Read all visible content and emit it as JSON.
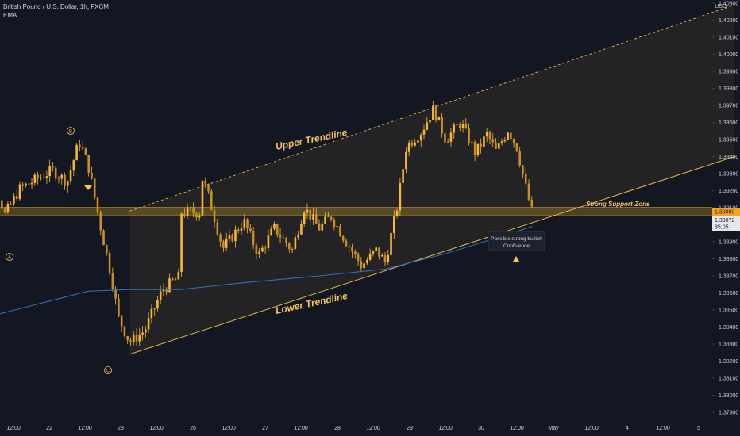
{
  "header": {
    "symbol": "British Pound / U.S. Dollar, 1h, FXCM",
    "indicator": "EMA"
  },
  "colors": {
    "background": "#131722",
    "candle": "#f7b633",
    "ema": "#2f6fb3",
    "trendline": "#e8b44a",
    "support_zone": "#c99a2e",
    "price_tag": "#f2a51a",
    "text": "#d1d4dc"
  },
  "chart_data": {
    "type": "candlestick",
    "currency": "USD",
    "y_ticks": [
      "1.37900",
      "1.38000",
      "1.38100",
      "1.38200",
      "1.38300",
      "1.38400",
      "1.38500",
      "1.38600",
      "1.38700",
      "1.38800",
      "1.38900",
      "1.39000",
      "1.39100",
      "1.39200",
      "1.39300",
      "1.39400",
      "1.39500",
      "1.39600",
      "1.39700",
      "1.39800",
      "1.39900",
      "1.40000",
      "1.40100",
      "1.40200",
      "1.40300"
    ],
    "x_ticks": [
      "12:00",
      "22",
      "12:00",
      "23",
      "12:00",
      "26",
      "12:00",
      "27",
      "12:00",
      "28",
      "12:00",
      "29",
      "12:00",
      "30",
      "12:00",
      "May",
      "12:00",
      "4",
      "12:00",
      "5"
    ],
    "price_labels": {
      "support_level": "1.39080",
      "last_price": "1.39072",
      "countdown": "35:05"
    },
    "annotations": {
      "upper_trendline": "Upper Trendline",
      "lower_trendline": "Lower Trendline",
      "support_zone": "Strong Support-Zone",
      "confluence_line1": "Possible strong bullish",
      "confluence_line2": "Confluence",
      "point_a": "A",
      "point_b": "B",
      "point_c": "C"
    },
    "trendlines": {
      "upper": {
        "from": [
          "23 03:00",
          1.3908
        ],
        "to": [
          "5 12:00",
          1.4029
        ]
      },
      "lower": {
        "from": [
          "23 03:00",
          1.3824
        ],
        "to": [
          "5 12:00",
          1.394
        ]
      }
    },
    "support_zone_price": 1.3908,
    "anchors": [
      [
        "21 07:00",
        1.3943
      ],
      [
        "21 13:00",
        1.3928
      ],
      [
        "21 17:00",
        1.3906
      ],
      [
        "21 22:00",
        1.3921
      ],
      [
        "22 01:00",
        1.3932
      ],
      [
        "22 06:00",
        1.3925
      ],
      [
        "22 10:00",
        1.3949
      ],
      [
        "22 13:00",
        1.3935
      ],
      [
        "22 17:00",
        1.39
      ],
      [
        "22 21:00",
        1.3868
      ],
      [
        "22 23:00",
        1.3846
      ],
      [
        "23 03:00",
        1.3831
      ],
      [
        "23 08:00",
        1.3838
      ],
      [
        "23 14:00",
        1.3862
      ],
      [
        "23 20:00",
        1.387
      ],
      [
        "24 00:00",
        1.3848
      ],
      [
        "24 04:00",
        1.3885
      ],
      [
        "24 09:00",
        1.39
      ],
      [
        "26 03:00",
        1.3928
      ],
      [
        "26 05:00",
        1.3918
      ],
      [
        "26 10:00",
        1.3886
      ],
      [
        "26 17:00",
        1.3902
      ],
      [
        "26 22:00",
        1.3882
      ],
      [
        "27 03:00",
        1.3898
      ],
      [
        "27 09:00",
        1.3885
      ],
      [
        "27 13:00",
        1.391
      ],
      [
        "27 18:00",
        1.3898
      ],
      [
        "27 22:00",
        1.3905
      ],
      [
        "28 04:00",
        1.3887
      ],
      [
        "28 08:00",
        1.3876
      ],
      [
        "28 13:00",
        1.3885
      ],
      [
        "28 16:00",
        1.3878
      ],
      [
        "28 20:00",
        1.3911
      ],
      [
        "28 23:00",
        1.3946
      ],
      [
        "29 04:00",
        1.3955
      ],
      [
        "29 08:00",
        1.3968
      ],
      [
        "29 12:00",
        1.395
      ],
      [
        "29 17:00",
        1.396
      ],
      [
        "29 22:00",
        1.3942
      ],
      [
        "30 02:00",
        1.3953
      ],
      [
        "30 05:00",
        1.3943
      ],
      [
        "30 09:00",
        1.3956
      ],
      [
        "30 12:00",
        1.3945
      ],
      [
        "30 15:00",
        1.3921
      ],
      [
        "30 17:00",
        1.39072
      ]
    ],
    "ema_anchors": [
      [
        "21 07:00",
        1.3844
      ],
      [
        "22 13:00",
        1.3861
      ],
      [
        "23 03:00",
        1.3862
      ],
      [
        "23 20:00",
        1.3862
      ],
      [
        "26 17:00",
        1.3866
      ],
      [
        "27 18:00",
        1.387
      ],
      [
        "28 16:00",
        1.3874
      ],
      [
        "29 12:00",
        1.3883
      ],
      [
        "30 10:00",
        1.3895
      ],
      [
        "30 17:00",
        1.3899
      ]
    ]
  }
}
